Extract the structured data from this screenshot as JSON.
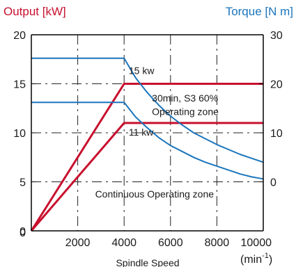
{
  "chart_data": {
    "type": "line",
    "title": "",
    "x_axis": {
      "label": "Spindle Speed",
      "unit_base": "min",
      "unit_exp": "-1",
      "range": [
        0,
        10000
      ],
      "ticks": [
        2000,
        4000,
        6000,
        8000,
        10000
      ],
      "zero_label": "0"
    },
    "y_left": {
      "label": "Output [kW]",
      "range": [
        0,
        20
      ],
      "ticks": [
        0,
        5,
        10,
        15,
        20
      ],
      "color": "#c8102e"
    },
    "y_right": {
      "label": "Torque [N m]",
      "range": [
        -10,
        30
      ],
      "ticks": [
        0,
        10,
        20,
        30
      ],
      "color": "#1a75bc"
    },
    "series": [
      {
        "axis": "left",
        "color": "#c8102e",
        "x": [
          0,
          4000,
          10000
        ],
        "y": [
          0,
          15,
          15
        ]
      },
      {
        "axis": "left",
        "color": "#c8102e",
        "x": [
          0,
          4000,
          10000
        ],
        "y": [
          0,
          11,
          11
        ]
      },
      {
        "axis": "left",
        "color": "#1a75bc",
        "x": [
          0,
          4000,
          4500,
          5000,
          5500,
          6000,
          6500,
          7000,
          7500,
          8000,
          8500,
          9000,
          9500,
          10000
        ],
        "y": [
          17.6,
          17.6,
          15.6,
          14.1,
          12.8,
          11.7,
          10.8,
          10.0,
          9.4,
          8.8,
          8.3,
          7.8,
          7.4,
          7.0
        ]
      },
      {
        "axis": "left",
        "color": "#1a75bc",
        "x": [
          0,
          4000,
          4500,
          5000,
          5500,
          6000,
          6500,
          7000,
          7500,
          8000,
          8500,
          9000,
          9500,
          10000
        ],
        "y": [
          13.1,
          13.1,
          11.6,
          10.5,
          9.5,
          8.7,
          8.1,
          7.5,
          7.0,
          6.6,
          6.2,
          5.8,
          5.5,
          5.3
        ]
      }
    ],
    "annotations": [
      {
        "text": "15 kw",
        "x": 4200,
        "y": 16.0
      },
      {
        "text": "30min, S3 60%",
        "x": 5200,
        "y": 13.2
      },
      {
        "text": "Operating zone",
        "x": 5200,
        "y": 11.8
      },
      {
        "text": "11 kw",
        "x": 4200,
        "y": 9.7
      },
      {
        "text": "Continuous Operating zone",
        "x": 2750,
        "y": 3.4
      }
    ],
    "grid": "dashed, major ticks",
    "legend": "none"
  }
}
